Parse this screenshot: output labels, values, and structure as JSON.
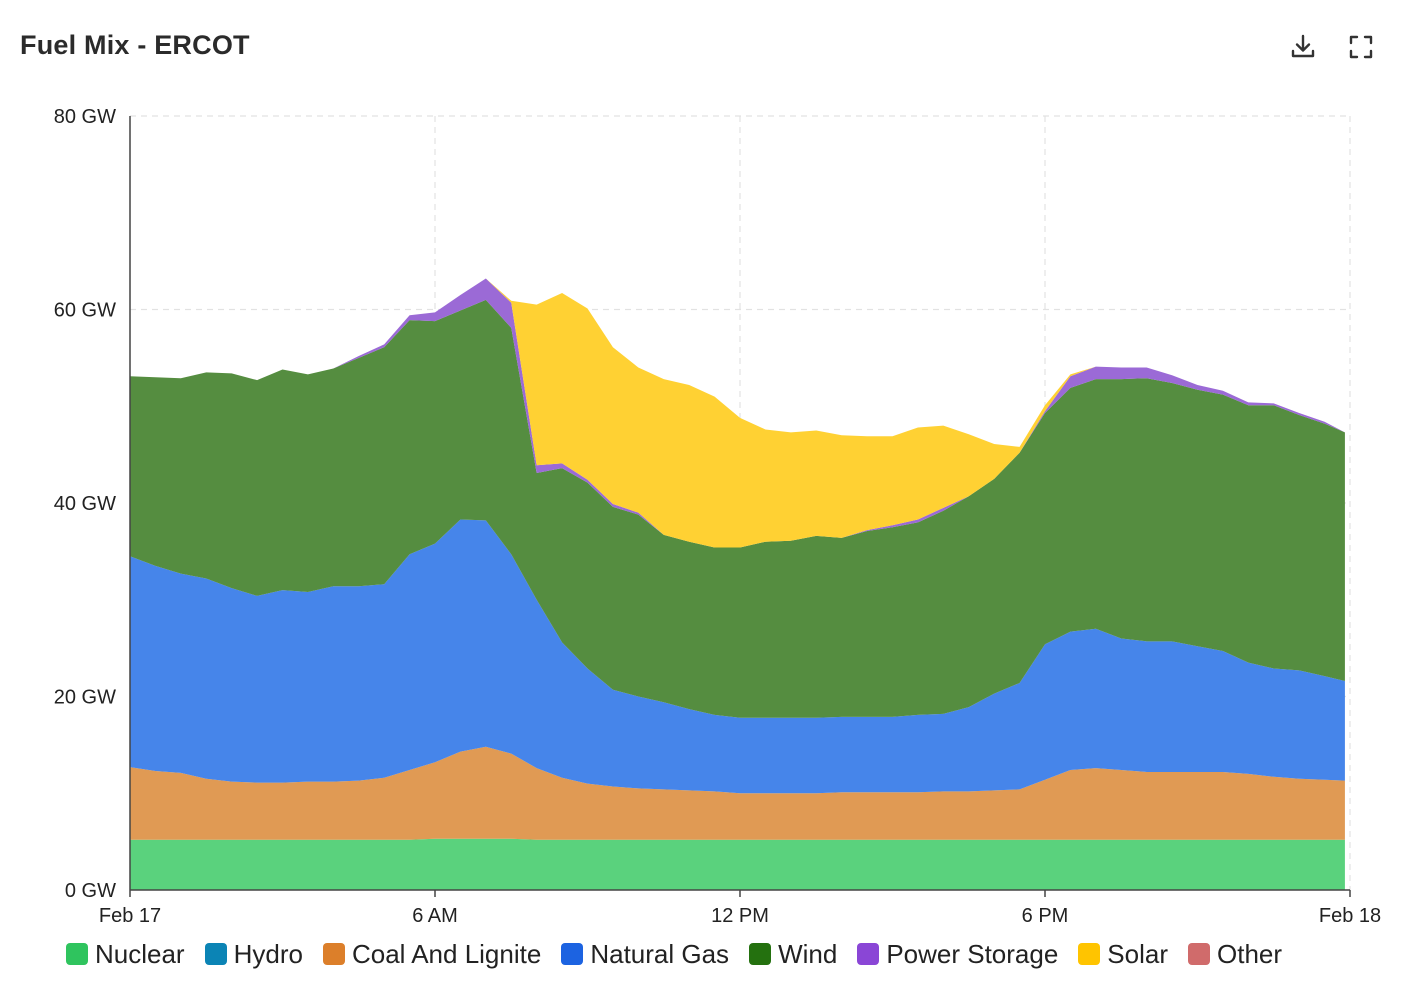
{
  "header": {
    "title": "Fuel Mix - ERCOT",
    "download_icon": "download-icon",
    "fullscreen_icon": "fullscreen-icon"
  },
  "chart_data": {
    "type": "area",
    "stacked": true,
    "title": "Fuel Mix - ERCOT",
    "xlabel": "",
    "ylabel": "",
    "x_unit": "hours since Feb 17 00:00",
    "xlim": [
      0,
      24
    ],
    "ylim": [
      0,
      80
    ],
    "grid": true,
    "legend_position": "bottom",
    "x_ticks": [
      {
        "value": 0,
        "label": "Feb 17"
      },
      {
        "value": 6,
        "label": "6 AM"
      },
      {
        "value": 12,
        "label": "12 PM"
      },
      {
        "value": 18,
        "label": "6 PM"
      },
      {
        "value": 24,
        "label": "Feb 18"
      }
    ],
    "y_ticks": [
      {
        "value": 0,
        "label": "0 GW"
      },
      {
        "value": 20,
        "label": "20 GW"
      },
      {
        "value": 40,
        "label": "40 GW"
      },
      {
        "value": 60,
        "label": "60 GW"
      },
      {
        "value": 80,
        "label": "80 GW"
      }
    ],
    "x": [
      0,
      0.5,
      1,
      1.5,
      2,
      2.5,
      3,
      3.5,
      4,
      4.5,
      5,
      5.5,
      6,
      6.5,
      7,
      7.5,
      8,
      8.5,
      9,
      9.5,
      10,
      10.5,
      11,
      11.5,
      12,
      12.5,
      13,
      13.5,
      14,
      14.5,
      15,
      15.5,
      16,
      16.5,
      17,
      17.5,
      18,
      18.5,
      19,
      19.5,
      20,
      20.5,
      21,
      21.5,
      22,
      22.5,
      23,
      23.5,
      23.9
    ],
    "series": [
      {
        "name": "Nuclear",
        "color": "#5ad27d",
        "values": [
          5.2,
          5.2,
          5.2,
          5.2,
          5.2,
          5.2,
          5.2,
          5.2,
          5.2,
          5.2,
          5.2,
          5.2,
          5.3,
          5.3,
          5.3,
          5.3,
          5.2,
          5.2,
          5.2,
          5.2,
          5.2,
          5.2,
          5.2,
          5.2,
          5.2,
          5.2,
          5.2,
          5.2,
          5.2,
          5.2,
          5.2,
          5.2,
          5.2,
          5.2,
          5.2,
          5.2,
          5.2,
          5.2,
          5.2,
          5.2,
          5.2,
          5.2,
          5.2,
          5.2,
          5.2,
          5.2,
          5.2,
          5.2,
          5.2
        ]
      },
      {
        "name": "Hydro",
        "color": "#0e8bb8",
        "values": [
          0,
          0,
          0,
          0,
          0,
          0,
          0,
          0,
          0,
          0,
          0,
          0,
          0,
          0,
          0,
          0,
          0,
          0,
          0,
          0,
          0,
          0,
          0,
          0,
          0,
          0,
          0,
          0,
          0,
          0,
          0,
          0,
          0,
          0,
          0,
          0,
          0,
          0,
          0,
          0,
          0,
          0,
          0,
          0,
          0,
          0,
          0,
          0,
          0
        ]
      },
      {
        "name": "Coal And Lignite",
        "color": "#e09a54",
        "values": [
          7.5,
          7.1,
          6.9,
          6.3,
          6.0,
          5.9,
          5.9,
          6.0,
          6.0,
          6.1,
          6.4,
          7.2,
          7.9,
          9.0,
          9.5,
          8.8,
          7.4,
          6.4,
          5.8,
          5.5,
          5.3,
          5.2,
          5.1,
          5.0,
          4.8,
          4.8,
          4.8,
          4.8,
          4.9,
          4.9,
          4.9,
          4.9,
          5.0,
          5.0,
          5.1,
          5.2,
          6.2,
          7.2,
          7.4,
          7.2,
          7.0,
          7.0,
          7.0,
          7.0,
          6.8,
          6.5,
          6.3,
          6.2,
          6.1
        ]
      },
      {
        "name": "Natural Gas",
        "color": "#4685ea",
        "values": [
          21.8,
          21.2,
          20.6,
          20.7,
          20.0,
          19.3,
          19.9,
          19.6,
          20.2,
          20.1,
          20.0,
          22.3,
          22.6,
          24.0,
          23.4,
          20.6,
          17.4,
          14.0,
          11.9,
          10.0,
          9.5,
          9.0,
          8.4,
          7.9,
          7.8,
          7.8,
          7.8,
          7.8,
          7.8,
          7.8,
          7.8,
          8.0,
          8.0,
          8.7,
          10.0,
          11.0,
          14.0,
          14.3,
          14.4,
          13.6,
          13.5,
          13.5,
          13.0,
          12.5,
          11.5,
          11.2,
          11.2,
          10.7,
          10.3
        ]
      },
      {
        "name": "Wind",
        "color": "#558d40",
        "values": [
          18.6,
          19.5,
          20.2,
          21.3,
          22.2,
          22.3,
          22.8,
          22.5,
          22.5,
          23.6,
          24.5,
          24.2,
          23.0,
          21.6,
          22.8,
          23.4,
          13.1,
          18.0,
          19.2,
          18.9,
          18.8,
          17.3,
          17.3,
          17.3,
          17.6,
          18.2,
          18.3,
          18.8,
          18.5,
          19.2,
          19.6,
          19.9,
          21.0,
          21.8,
          22.2,
          23.8,
          23.9,
          25.2,
          25.8,
          26.8,
          27.2,
          26.7,
          26.5,
          26.5,
          26.6,
          27.2,
          26.4,
          26.1,
          25.7
        ]
      },
      {
        "name": "Power Storage",
        "color": "#9b6ad6",
        "values": [
          0,
          0,
          0,
          0,
          0,
          0,
          0,
          0,
          0,
          0.2,
          0.3,
          0.5,
          0.9,
          1.6,
          2.2,
          2.6,
          0.8,
          0.5,
          0.3,
          0.3,
          0.2,
          0,
          0,
          0,
          0,
          0,
          0,
          0,
          0,
          0.1,
          0.2,
          0.3,
          0.3,
          0,
          0,
          0,
          0.2,
          1.2,
          1.3,
          1.2,
          1.1,
          0.8,
          0.5,
          0.4,
          0.3,
          0.2,
          0.2,
          0.2,
          0
        ]
      },
      {
        "name": "Solar",
        "color": "#ffd133",
        "values": [
          0,
          0,
          0,
          0,
          0,
          0,
          0,
          0,
          0,
          0,
          0,
          0,
          0,
          0,
          0,
          0.2,
          16.6,
          17.6,
          17.7,
          16.2,
          15.0,
          16.1,
          16.2,
          15.6,
          13.4,
          11.6,
          11.2,
          10.9,
          10.6,
          9.7,
          9.2,
          9.5,
          8.5,
          6.4,
          3.6,
          0.6,
          0.6,
          0.2,
          0,
          0,
          0,
          0,
          0,
          0,
          0,
          0,
          0,
          0,
          0
        ]
      },
      {
        "name": "Other",
        "color": "#d06b6b",
        "values": [
          0,
          0,
          0,
          0,
          0,
          0,
          0,
          0,
          0,
          0,
          0,
          0,
          0,
          0,
          0,
          0,
          0,
          0,
          0,
          0,
          0,
          0,
          0,
          0,
          0,
          0,
          0,
          0,
          0,
          0,
          0,
          0,
          0,
          0,
          0,
          0,
          0,
          0,
          0,
          0,
          0,
          0,
          0,
          0,
          0,
          0,
          0,
          0,
          0
        ]
      }
    ]
  },
  "legend": {
    "items": [
      {
        "label": "Nuclear",
        "color": "#2fc45e"
      },
      {
        "label": "Hydro",
        "color": "#0b84b5"
      },
      {
        "label": "Coal And Lignite",
        "color": "#dc7f2a"
      },
      {
        "label": "Natural Gas",
        "color": "#1c63e1"
      },
      {
        "label": "Wind",
        "color": "#24710f"
      },
      {
        "label": "Power Storage",
        "color": "#8a46d6"
      },
      {
        "label": "Solar",
        "color": "#ffc400"
      },
      {
        "label": "Other",
        "color": "#d06b6b"
      }
    ]
  }
}
